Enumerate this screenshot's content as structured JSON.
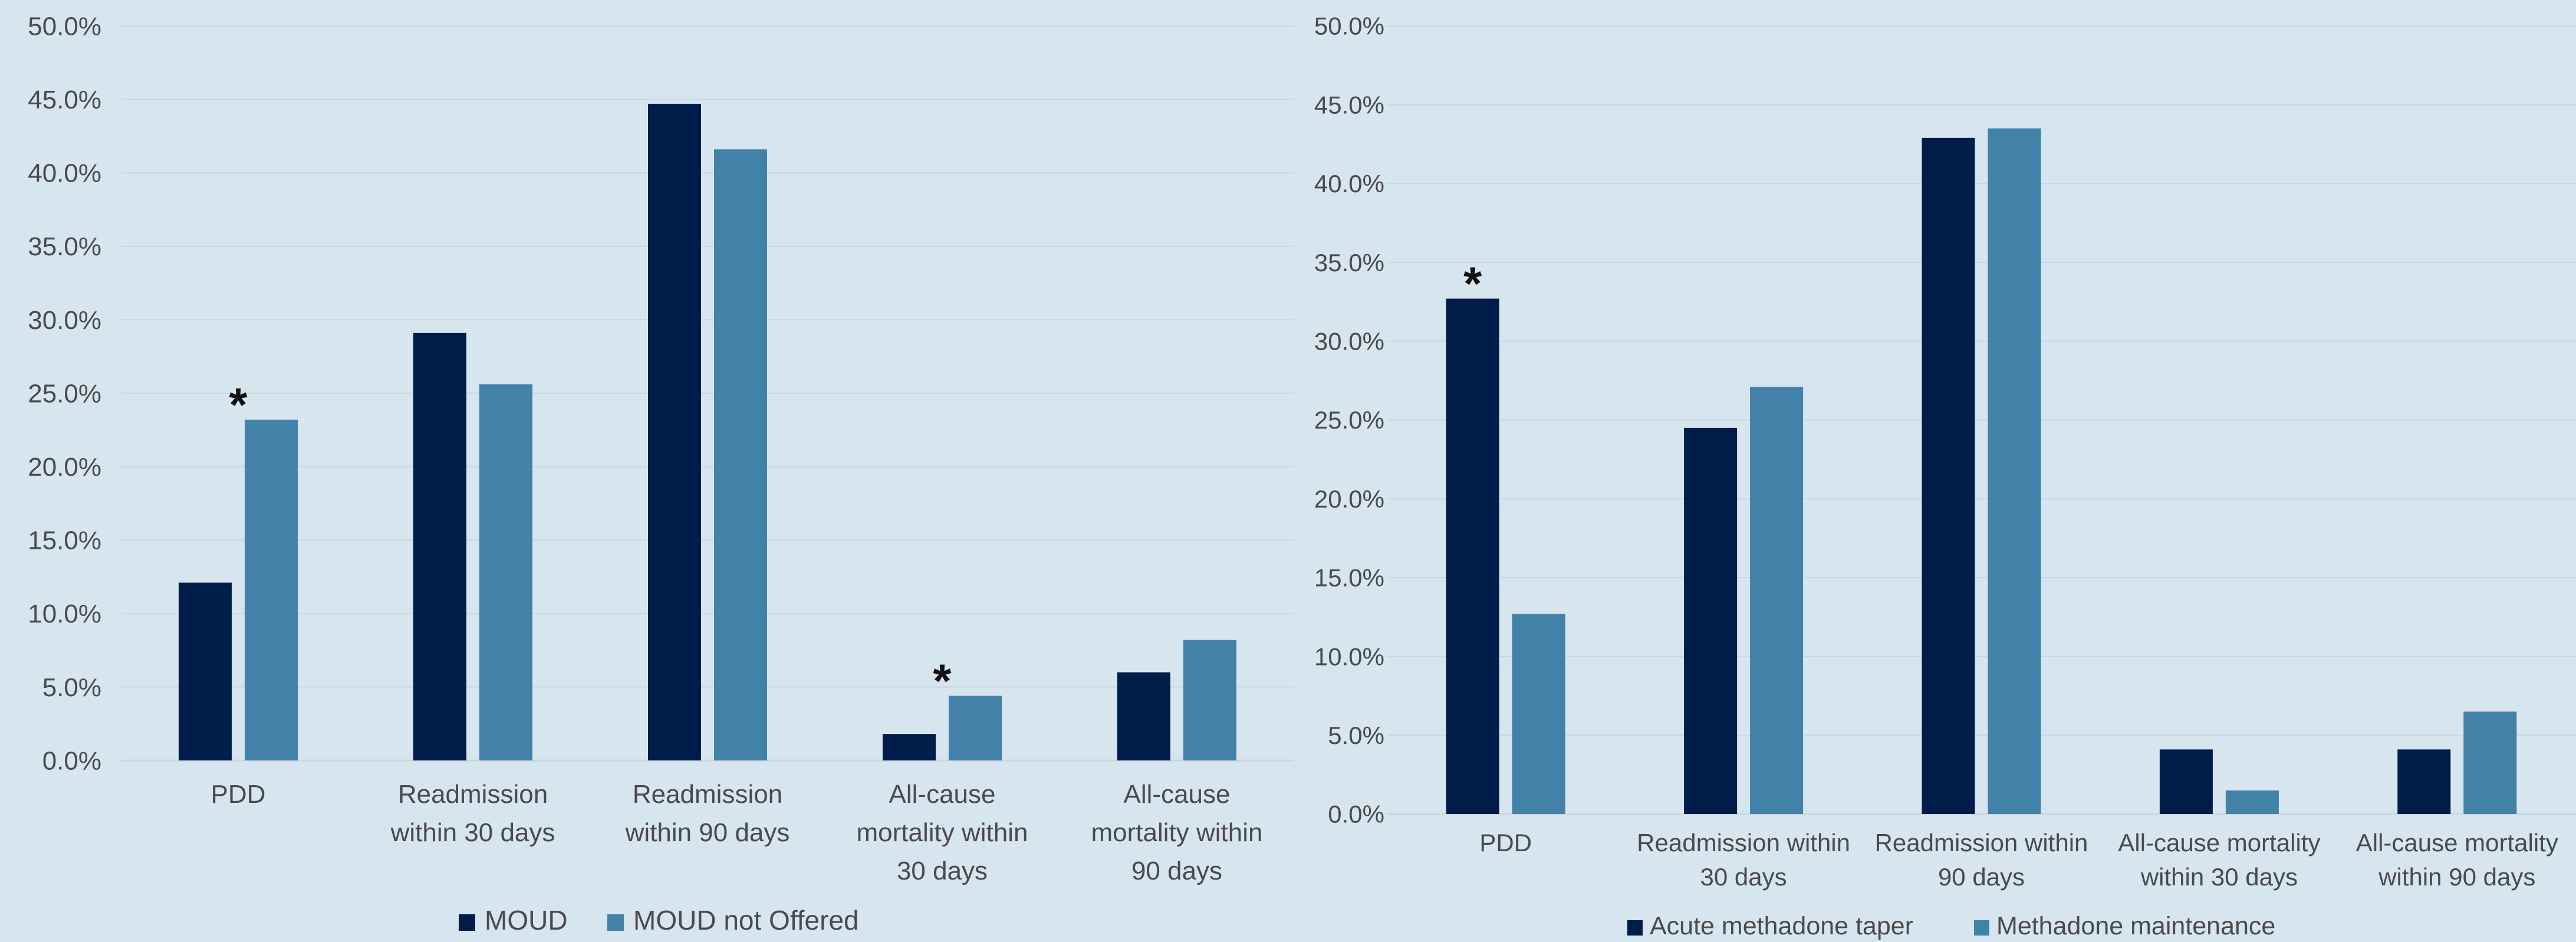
{
  "chart_data": [
    {
      "type": "bar",
      "title": "",
      "xlabel": "",
      "ylabel": "",
      "ylim": [
        0,
        50
      ],
      "yticks": [
        "0.0%",
        "5.0%",
        "10.0%",
        "15.0%",
        "20.0%",
        "25.0%",
        "30.0%",
        "35.0%",
        "40.0%",
        "45.0%",
        "50.0%"
      ],
      "grid": true,
      "legend_position": "bottom",
      "categories": [
        [
          "PDD"
        ],
        [
          "Readmission",
          "within 30 days"
        ],
        [
          "Readmission",
          "within 90 days"
        ],
        [
          "All-cause",
          "mortality within",
          "30 days"
        ],
        [
          "All-cause",
          "mortality within",
          "90 days"
        ]
      ],
      "series": [
        {
          "name": "MOUD",
          "color": "#001d4a",
          "values": [
            12.1,
            29.1,
            44.7,
            1.8,
            6.0
          ]
        },
        {
          "name": "MOUD not Offered",
          "color": "#4281a8",
          "values": [
            23.2,
            25.6,
            41.6,
            4.4,
            8.2
          ]
        }
      ],
      "annotations": [
        {
          "category_index": 0,
          "text": "*"
        },
        {
          "category_index": 3,
          "text": "*"
        }
      ]
    },
    {
      "type": "bar",
      "title": "",
      "xlabel": "",
      "ylabel": "",
      "ylim": [
        0,
        50
      ],
      "yticks": [
        "0.0%",
        "5.0%",
        "10.0%",
        "15.0%",
        "20.0%",
        "25.0%",
        "30.0%",
        "35.0%",
        "40.0%",
        "45.0%",
        "50.0%"
      ],
      "grid": true,
      "legend_position": "bottom",
      "categories": [
        [
          "PDD"
        ],
        [
          "Readmission within",
          "30 days"
        ],
        [
          "Readmission within",
          "90 days"
        ],
        [
          "All-cause mortality",
          "within 30 days"
        ],
        [
          "All-cause mortality",
          "within 90 days"
        ]
      ],
      "series": [
        {
          "name": "Acute methadone taper",
          "color": "#001d4a",
          "values": [
            32.7,
            24.5,
            42.9,
            4.1,
            4.1
          ]
        },
        {
          "name": "Methadone maintenance",
          "color": "#4281a8",
          "values": [
            12.7,
            27.1,
            43.5,
            1.5,
            6.5
          ]
        }
      ],
      "annotations": [
        {
          "category_index": 0,
          "text": "*"
        }
      ]
    }
  ],
  "colors": {
    "background": "#d7e5ef",
    "grid": "#c8d7e2",
    "axis": "#c8d7e2",
    "text": "#4a4a4a"
  }
}
